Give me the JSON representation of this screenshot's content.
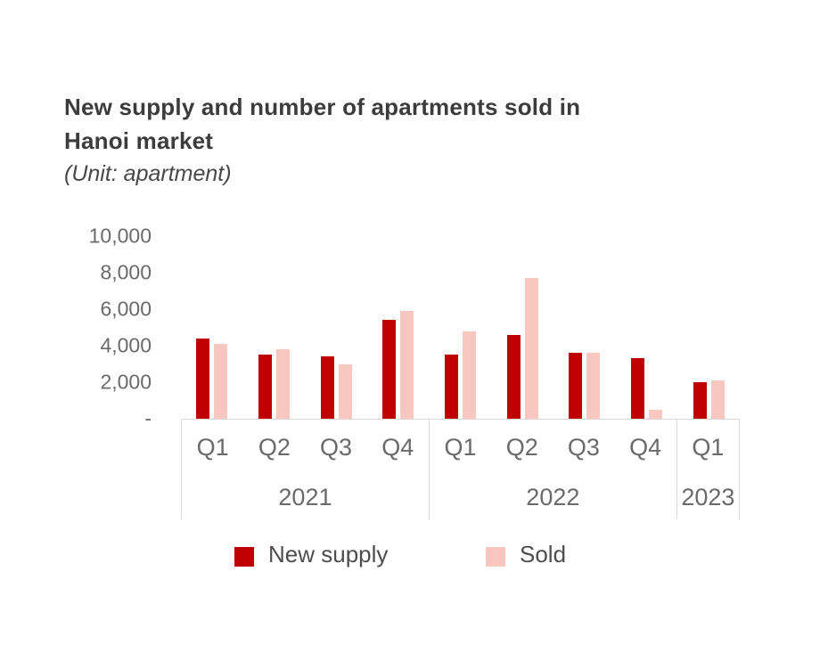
{
  "title": {
    "line1": "New supply and number of apartments sold in",
    "line2": "Hanoi market",
    "subtitle": "(Unit: apartment)"
  },
  "legend": [
    {
      "label": "New supply",
      "color": "#c00000"
    },
    {
      "label": "Sold",
      "color": "#f8c7bf"
    }
  ],
  "colors": {
    "new_supply": "#c00000",
    "sold": "#f8c7bf",
    "axis_text": "#6a6a6a",
    "axis_line": "#d9d9d9",
    "title_text": "#3c3c3c"
  },
  "chart_data": {
    "type": "bar",
    "title": "New supply and number of apartments sold in Hanoi market",
    "unit": "apartment",
    "groups": [
      {
        "year": "2021",
        "quarters": [
          "Q1",
          "Q2",
          "Q3",
          "Q4"
        ]
      },
      {
        "year": "2022",
        "quarters": [
          "Q1",
          "Q2",
          "Q3",
          "Q4"
        ]
      },
      {
        "year": "2023",
        "quarters": [
          "Q1"
        ]
      }
    ],
    "categories": [
      "Q1 2021",
      "Q2 2021",
      "Q3 2021",
      "Q4 2021",
      "Q1 2022",
      "Q2 2022",
      "Q3 2022",
      "Q4 2022",
      "Q1 2023"
    ],
    "series": [
      {
        "name": "New supply",
        "color": "#c00000",
        "values": [
          4400,
          3500,
          3400,
          5400,
          3500,
          4600,
          3600,
          3300,
          2000
        ]
      },
      {
        "name": "Sold",
        "color": "#f8c7bf",
        "values": [
          4100,
          3800,
          3000,
          5900,
          4800,
          7700,
          3600,
          500,
          2100
        ]
      }
    ],
    "ylim": [
      0,
      10000
    ],
    "y_ticks": [
      {
        "label": "10,000",
        "value": 10000
      },
      {
        "label": "8,000",
        "value": 8000
      },
      {
        "label": "6,000",
        "value": 6000
      },
      {
        "label": "4,000",
        "value": 4000
      },
      {
        "label": "2,000",
        "value": 2000
      },
      {
        "label": "-",
        "value": 0
      }
    ],
    "grid": false,
    "legend_position": "bottom"
  }
}
